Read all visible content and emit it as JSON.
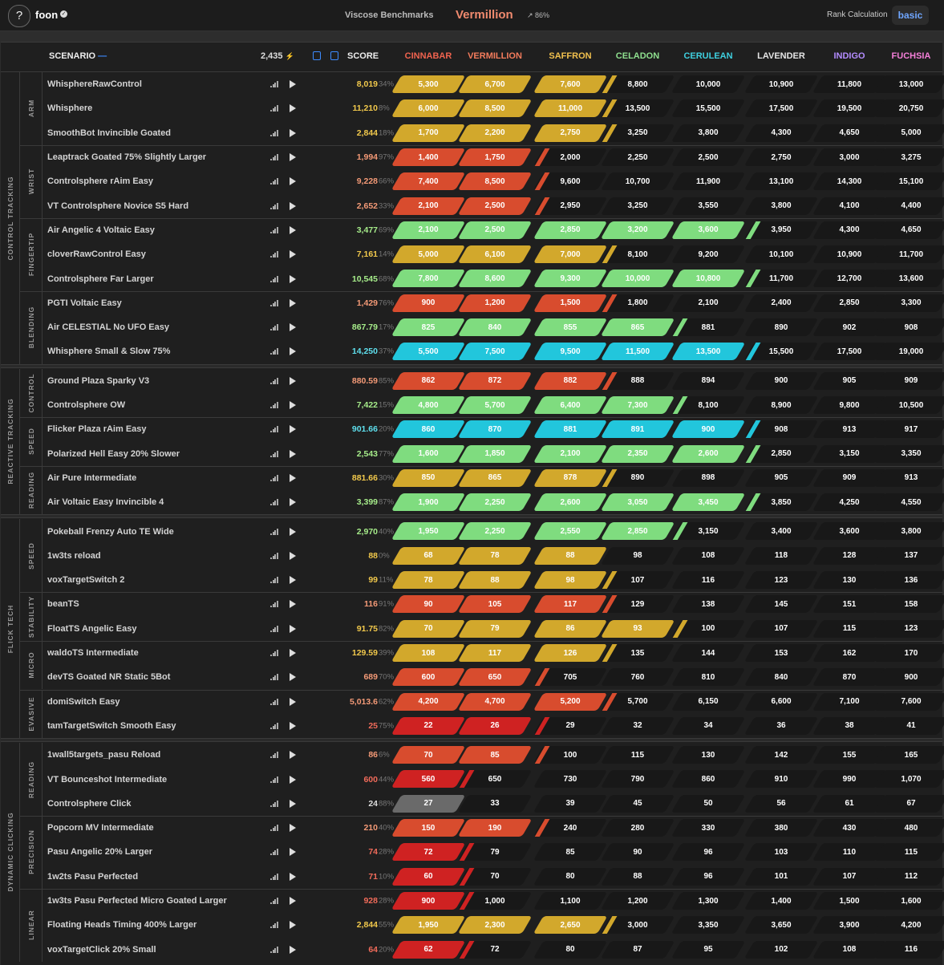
{
  "topbar": {
    "help_label": "?",
    "username": "foon",
    "benchmark_name": "Viscose Benchmarks",
    "rank_name": "Vermillion",
    "rank_progress": "↗ 86%",
    "rank_calc_label": "Rank Calculation",
    "rank_calc_value": "basic"
  },
  "header": {
    "scenario_label": "SCENARIO",
    "total_energy": "2,435",
    "score_label": "SCORE",
    "ranks": [
      "CINNABAR",
      "VERMILLION",
      "SAFFRON",
      "CELADON",
      "CERULEAN",
      "LAVENDER",
      "INDIGO",
      "FUCHSIA"
    ]
  },
  "colors": {
    "rank_text": [
      "#f0634f",
      "#f47c5c",
      "#f2c14e",
      "#8fe08f",
      "#3fd0e0",
      "#e6e6e6",
      "#b48cff",
      "#f57fd9"
    ],
    "fill": {
      "R": "#cf2222",
      "O": "#d84c2e",
      "Y": "#d2a82c",
      "G": "#7fdc7f",
      "C": "#22c6dc",
      "S": "#6a6a6a"
    },
    "score": {
      "R": "#f06b5a",
      "O": "#f49a77",
      "Y": "#f2c94c",
      "G": "#a6ec8a",
      "C": "#5fe0ee",
      "S": "#dddddd"
    }
  },
  "categories": [
    {
      "name": "CONTROL TRACKING",
      "subs": [
        {
          "name": "ARM",
          "rows": [
            {
              "name": "WhisphereRawControl",
              "score": "8,019",
              "pct": "34%",
              "color": "Y",
              "filled": 3,
              "tip": "Y",
              "thresholds": [
                "5,300",
                "6,700",
                "7,600",
                "8,800",
                "10,000",
                "10,900",
                "11,800",
                "13,000"
              ]
            },
            {
              "name": "Whisphere",
              "score": "11,210",
              "pct": "8%",
              "color": "Y",
              "filled": 3,
              "tip": "Y",
              "thresholds": [
                "6,000",
                "8,500",
                "11,000",
                "13,500",
                "15,500",
                "17,500",
                "19,500",
                "20,750"
              ]
            },
            {
              "name": "SmoothBot Invincible Goated",
              "score": "2,844",
              "pct": "18%",
              "color": "Y",
              "filled": 3,
              "tip": "Y",
              "thresholds": [
                "1,700",
                "2,200",
                "2,750",
                "3,250",
                "3,800",
                "4,300",
                "4,650",
                "5,000"
              ]
            }
          ]
        },
        {
          "name": "WRIST",
          "rows": [
            {
              "name": "Leaptrack Goated 75% Slightly Larger",
              "score": "1,994",
              "pct": "97%",
              "color": "O",
              "filled": 2,
              "tip": "O",
              "thresholds": [
                "1,400",
                "1,750",
                "2,000",
                "2,250",
                "2,500",
                "2,750",
                "3,000",
                "3,275"
              ]
            },
            {
              "name": "Controlsphere rAim Easy",
              "score": "9,228",
              "pct": "66%",
              "color": "O",
              "filled": 2,
              "tip": "O",
              "thresholds": [
                "7,400",
                "8,500",
                "9,600",
                "10,700",
                "11,900",
                "13,100",
                "14,300",
                "15,100"
              ]
            },
            {
              "name": "VT Controlsphere Novice S5 Hard",
              "score": "2,652",
              "pct": "33%",
              "color": "O",
              "filled": 2,
              "tip": "O",
              "thresholds": [
                "2,100",
                "2,500",
                "2,950",
                "3,250",
                "3,550",
                "3,800",
                "4,100",
                "4,400"
              ]
            }
          ]
        },
        {
          "name": "FINGERTIP",
          "rows": [
            {
              "name": "Air Angelic 4 Voltaic Easy",
              "score": "3,477",
              "pct": "69%",
              "color": "G",
              "filled": 5,
              "tip": "G",
              "thresholds": [
                "2,100",
                "2,500",
                "2,850",
                "3,200",
                "3,600",
                "3,950",
                "4,300",
                "4,650"
              ]
            },
            {
              "name": "cloverRawControl Easy",
              "score": "7,161",
              "pct": "14%",
              "color": "Y",
              "filled": 3,
              "tip": "Y",
              "thresholds": [
                "5,000",
                "6,100",
                "7,000",
                "8,100",
                "9,200",
                "10,100",
                "10,900",
                "11,700"
              ]
            },
            {
              "name": "Controlsphere Far Larger",
              "score": "10,545",
              "pct": "68%",
              "color": "G",
              "filled": 5,
              "tip": "G",
              "thresholds": [
                "7,800",
                "8,600",
                "9,300",
                "10,000",
                "10,800",
                "11,700",
                "12,700",
                "13,600"
              ]
            }
          ]
        },
        {
          "name": "BLENDING",
          "rows": [
            {
              "name": "PGTI Voltaic Easy",
              "score": "1,429",
              "pct": "76%",
              "color": "O",
              "filled": 3,
              "tip": "O",
              "thresholds": [
                "900",
                "1,200",
                "1,500",
                "1,800",
                "2,100",
                "2,400",
                "2,850",
                "3,300"
              ]
            },
            {
              "name": "Air CELESTIAL No UFO Easy",
              "score": "867.79",
              "pct": "17%",
              "color": "G",
              "filled": 4,
              "tip": "G",
              "thresholds": [
                "825",
                "840",
                "855",
                "865",
                "881",
                "890",
                "902",
                "908"
              ]
            },
            {
              "name": "Whisphere Small & Slow 75%",
              "score": "14,250",
              "pct": "37%",
              "color": "C",
              "filled": 5,
              "tip": "C",
              "thresholds": [
                "5,500",
                "7,500",
                "9,500",
                "11,500",
                "13,500",
                "15,500",
                "17,500",
                "19,000"
              ]
            }
          ]
        }
      ]
    },
    {
      "name": "REACTIVE TRACKING",
      "subs": [
        {
          "name": "CONTROL",
          "rows": [
            {
              "name": "Ground Plaza Sparky V3",
              "score": "880.59",
              "pct": "85%",
              "color": "O",
              "filled": 3,
              "tip": "O",
              "thresholds": [
                "862",
                "872",
                "882",
                "888",
                "894",
                "900",
                "905",
                "909"
              ]
            },
            {
              "name": "Controlsphere OW",
              "score": "7,422",
              "pct": "15%",
              "color": "G",
              "filled": 4,
              "tip": "G",
              "thresholds": [
                "4,800",
                "5,700",
                "6,400",
                "7,300",
                "8,100",
                "8,900",
                "9,800",
                "10,500"
              ]
            }
          ]
        },
        {
          "name": "SPEED",
          "rows": [
            {
              "name": "Flicker Plaza rAim Easy",
              "score": "901.66",
              "pct": "20%",
              "color": "C",
              "filled": 5,
              "tip": "C",
              "thresholds": [
                "860",
                "870",
                "881",
                "891",
                "900",
                "908",
                "913",
                "917"
              ]
            },
            {
              "name": "Polarized Hell Easy 20% Slower",
              "score": "2,543",
              "pct": "77%",
              "color": "G",
              "filled": 5,
              "tip": "G",
              "thresholds": [
                "1,600",
                "1,850",
                "2,100",
                "2,350",
                "2,600",
                "2,850",
                "3,150",
                "3,350"
              ]
            }
          ]
        },
        {
          "name": "READING",
          "rows": [
            {
              "name": "Air Pure Intermediate",
              "score": "881.66",
              "pct": "30%",
              "color": "Y",
              "filled": 3,
              "tip": "Y",
              "thresholds": [
                "850",
                "865",
                "878",
                "890",
                "898",
                "905",
                "909",
                "913"
              ]
            },
            {
              "name": "Air Voltaic Easy Invincible 4",
              "score": "3,399",
              "pct": "87%",
              "color": "G",
              "filled": 5,
              "tip": "G",
              "thresholds": [
                "1,900",
                "2,250",
                "2,600",
                "3,050",
                "3,450",
                "3,850",
                "4,250",
                "4,550"
              ]
            }
          ]
        }
      ]
    },
    {
      "name": "FLICK TECH",
      "subs": [
        {
          "name": "SPEED",
          "rows": [
            {
              "name": "Pokeball Frenzy Auto TE Wide",
              "score": "2,970",
              "pct": "40%",
              "color": "G",
              "filled": 4,
              "tip": "G",
              "thresholds": [
                "1,950",
                "2,250",
                "2,550",
                "2,850",
                "3,150",
                "3,400",
                "3,600",
                "3,800"
              ]
            },
            {
              "name": "1w3ts reload",
              "score": "88",
              "pct": "0%",
              "color": "Y",
              "filled": 3,
              "tip": "",
              "thresholds": [
                "68",
                "78",
                "88",
                "98",
                "108",
                "118",
                "128",
                "137"
              ]
            },
            {
              "name": "voxTargetSwitch 2",
              "score": "99",
              "pct": "11%",
              "color": "Y",
              "filled": 3,
              "tip": "Y",
              "thresholds": [
                "78",
                "88",
                "98",
                "107",
                "116",
                "123",
                "130",
                "136"
              ]
            }
          ]
        },
        {
          "name": "STABILITY",
          "rows": [
            {
              "name": "beanTS",
              "score": "116",
              "pct": "91%",
              "color": "O",
              "filled": 3,
              "tip": "O",
              "thresholds": [
                "90",
                "105",
                "117",
                "129",
                "138",
                "145",
                "151",
                "158"
              ]
            },
            {
              "name": "FloatTS Angelic Easy",
              "score": "91.75",
              "pct": "82%",
              "color": "Y",
              "filled": 4,
              "tip": "Y",
              "thresholds": [
                "70",
                "79",
                "86",
                "93",
                "100",
                "107",
                "115",
                "123"
              ]
            }
          ]
        },
        {
          "name": "MICRO",
          "rows": [
            {
              "name": "waldoTS Intermediate",
              "score": "129.59",
              "pct": "39%",
              "color": "Y",
              "filled": 3,
              "tip": "Y",
              "thresholds": [
                "108",
                "117",
                "126",
                "135",
                "144",
                "153",
                "162",
                "170"
              ]
            },
            {
              "name": "devTS Goated NR Static 5Bot",
              "score": "689",
              "pct": "70%",
              "color": "O",
              "filled": 2,
              "tip": "O",
              "thresholds": [
                "600",
                "650",
                "705",
                "760",
                "810",
                "840",
                "870",
                "900"
              ]
            }
          ]
        },
        {
          "name": "EVASIVE",
          "rows": [
            {
              "name": "domiSwitch Easy",
              "score": "5,013.6",
              "pct": "62%",
              "color": "O",
              "filled": 3,
              "tip": "O",
              "thresholds": [
                "4,200",
                "4,700",
                "5,200",
                "5,700",
                "6,150",
                "6,600",
                "7,100",
                "7,600"
              ]
            },
            {
              "name": "tamTargetSwitch Smooth Easy",
              "score": "25",
              "pct": "75%",
              "color": "R",
              "filled": 2,
              "tip": "R",
              "thresholds": [
                "22",
                "26",
                "29",
                "32",
                "34",
                "36",
                "38",
                "41"
              ]
            }
          ]
        }
      ]
    },
    {
      "name": "DYNAMIC CLICKING",
      "subs": [
        {
          "name": "READING",
          "rows": [
            {
              "name": "1wall5targets_pasu Reload",
              "score": "86",
              "pct": "6%",
              "color": "O",
              "filled": 2,
              "tip": "O",
              "thresholds": [
                "70",
                "85",
                "100",
                "115",
                "130",
                "142",
                "155",
                "165"
              ]
            },
            {
              "name": "VT Bounceshot Intermediate",
              "score": "600",
              "pct": "44%",
              "color": "R",
              "filled": 1,
              "tip": "R",
              "thresholds": [
                "560",
                "650",
                "730",
                "790",
                "860",
                "910",
                "990",
                "1,070"
              ]
            },
            {
              "name": "Controlsphere Click",
              "score": "24",
              "pct": "88%",
              "color": "S",
              "filled": 0,
              "tip": "S",
              "thresholds": [
                "27",
                "33",
                "39",
                "45",
                "50",
                "56",
                "61",
                "67"
              ]
            }
          ]
        },
        {
          "name": "PRECISION",
          "rows": [
            {
              "name": "Popcorn MV Intermediate",
              "score": "210",
              "pct": "40%",
              "color": "O",
              "filled": 2,
              "tip": "O",
              "thresholds": [
                "150",
                "190",
                "240",
                "280",
                "330",
                "380",
                "430",
                "480"
              ]
            },
            {
              "name": "Pasu Angelic 20% Larger",
              "score": "74",
              "pct": "28%",
              "color": "R",
              "filled": 1,
              "tip": "R",
              "thresholds": [
                "72",
                "79",
                "85",
                "90",
                "96",
                "103",
                "110",
                "115"
              ]
            },
            {
              "name": "1w2ts Pasu Perfected",
              "score": "71",
              "pct": "10%",
              "color": "R",
              "filled": 1,
              "tip": "R",
              "thresholds": [
                "60",
                "70",
                "80",
                "88",
                "96",
                "101",
                "107",
                "112"
              ]
            }
          ]
        },
        {
          "name": "LINEAR",
          "rows": [
            {
              "name": "1w3ts Pasu Perfected Micro Goated Larger",
              "score": "928",
              "pct": "28%",
              "color": "R",
              "filled": 1,
              "tip": "R",
              "thresholds": [
                "900",
                "1,000",
                "1,100",
                "1,200",
                "1,300",
                "1,400",
                "1,500",
                "1,600"
              ]
            },
            {
              "name": "Floating Heads Timing 400% Larger",
              "score": "2,844",
              "pct": "55%",
              "color": "Y",
              "filled": 3,
              "tip": "Y",
              "thresholds": [
                "1,950",
                "2,300",
                "2,650",
                "3,000",
                "3,350",
                "3,650",
                "3,900",
                "4,200"
              ]
            },
            {
              "name": "voxTargetClick 20% Small",
              "score": "64",
              "pct": "20%",
              "color": "R",
              "filled": 1,
              "tip": "R",
              "thresholds": [
                "62",
                "72",
                "80",
                "87",
                "95",
                "102",
                "108",
                "116"
              ]
            }
          ]
        }
      ]
    }
  ]
}
